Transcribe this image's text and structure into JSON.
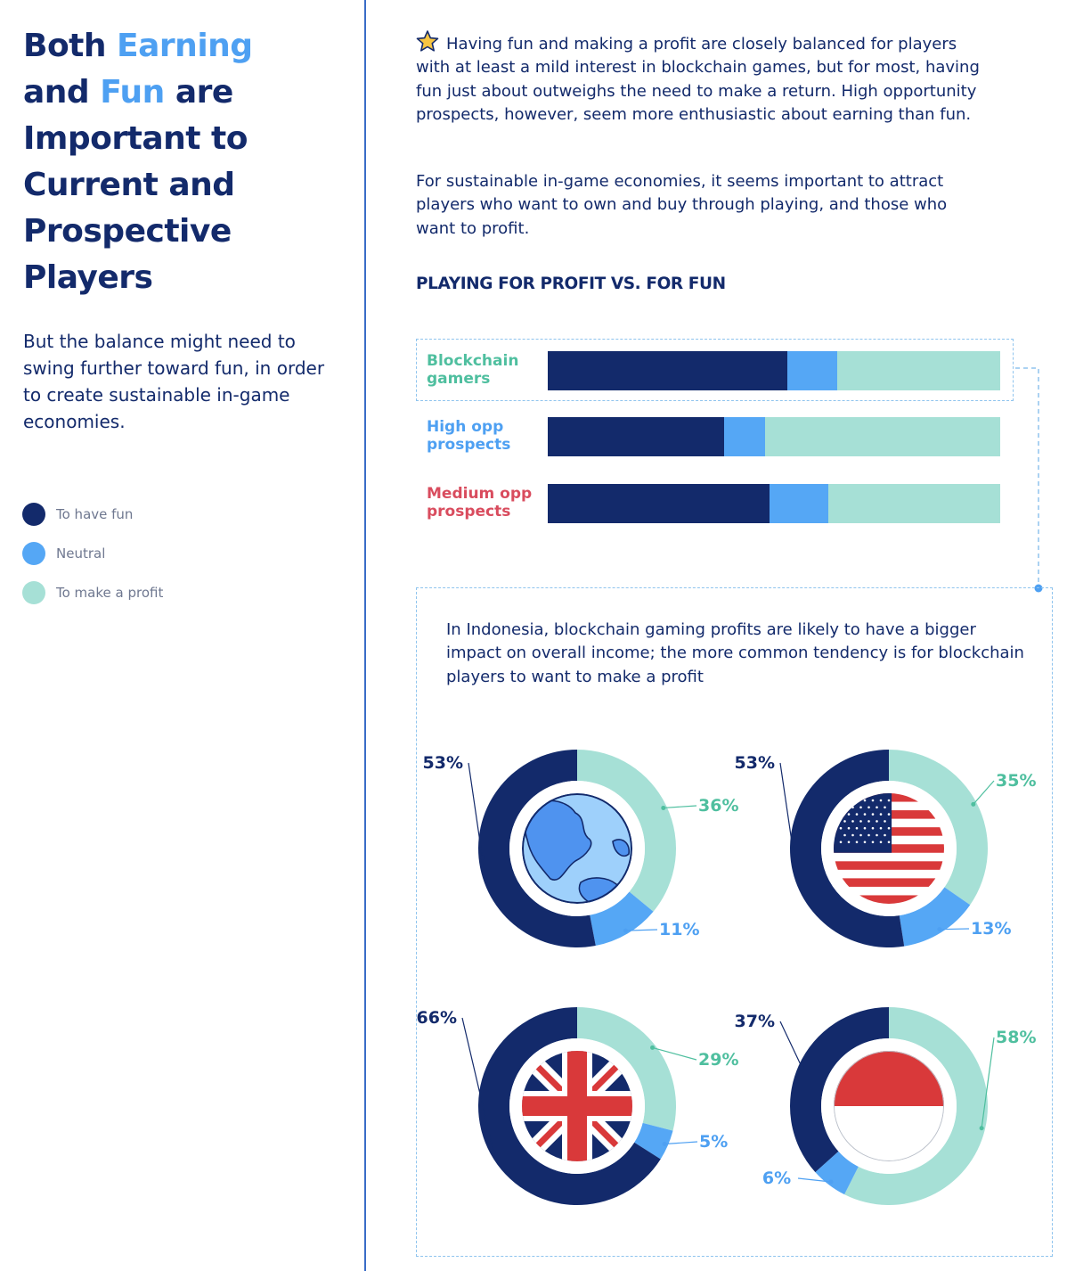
{
  "sidebar": {
    "title_line1_a": "Both ",
    "title_line1_b": "Earning",
    "title_line2_a": "and ",
    "title_line2_b": "Fun",
    "title_line2_c": " are",
    "title_rest": "Important to Current and Prospective Players",
    "subtitle": "But the balance might need to swing further toward fun, in order to create sustainable in-game economies.",
    "legend": [
      {
        "label": "To have fun",
        "color": "#132a6b"
      },
      {
        "label": "Neutral",
        "color": "#55a7f5"
      },
      {
        "label": "To make a profit",
        "color": "#a6e0d6"
      }
    ]
  },
  "main": {
    "intro_icon": "star-icon",
    "intro": "Having fun and making a profit are closely balanced for players with at least a mild interest in blockchain games, but for most, having fun just about outweighs the need to make a return. High opportunity prospects, however, seem more enthusiastic about earning than fun.",
    "intro2": "For sustainable in-game economies, it seems important to attract players who want to own and buy through playing, and those who want to profit.",
    "section_title": "PLAYING FOR PROFIT VS. FOR FUN",
    "box_text": "In Indonesia, blockchain gaming profits are likely to have a bigger impact on overall income; the more common tendency is for blockchain players to want to make a profit"
  },
  "colors": {
    "fun": "#132a6b",
    "neutral": "#55a7f5",
    "profit": "#a6e0d6",
    "profit_text": "#4fbf9f",
    "neutral_text": "#4ea0f2",
    "medium_text": "#d94c5e"
  },
  "chart_data": [
    {
      "type": "bar",
      "stacked": true,
      "horizontal": true,
      "categories": [
        "Blockchain gamers",
        "High opp prospects",
        "Medium opp prospects"
      ],
      "category_colors": [
        "#4fbf9f",
        "#4ea0f2",
        "#d94c5e"
      ],
      "series": [
        {
          "name": "To have fun",
          "values": [
            53,
            39,
            49
          ]
        },
        {
          "name": "Neutral",
          "values": [
            11,
            9,
            13
          ]
        },
        {
          "name": "To make a profit",
          "values": [
            36,
            52,
            38
          ]
        }
      ]
    },
    {
      "type": "pie",
      "donuts": [
        {
          "flag_icon": "globe-icon",
          "labels": [
            "53%",
            "11%",
            "36%"
          ],
          "values": [
            53,
            11,
            36
          ]
        },
        {
          "flag_icon": "us-flag-icon",
          "labels": [
            "53%",
            "13%",
            "35%"
          ],
          "values": [
            53,
            13,
            35
          ]
        },
        {
          "flag_icon": "uk-flag-icon",
          "labels": [
            "66%",
            "5%",
            "29%"
          ],
          "values": [
            66,
            5,
            29
          ]
        },
        {
          "flag_icon": "indonesia-flag-icon",
          "labels": [
            "37%",
            "6%",
            "58%"
          ],
          "values": [
            37,
            6,
            58
          ]
        }
      ],
      "slice_order": [
        "To have fun",
        "Neutral",
        "To make a profit"
      ]
    }
  ]
}
